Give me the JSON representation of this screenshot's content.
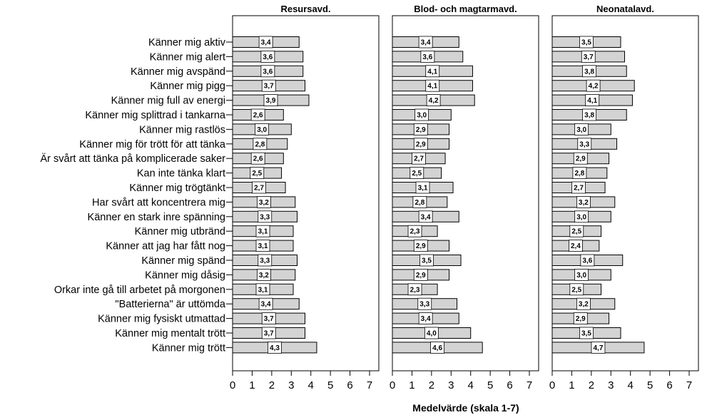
{
  "chart_data": {
    "type": "bar",
    "orientation": "horizontal",
    "xlabel": "Medelvärde (skala 1-7)",
    "xlim": [
      0,
      7
    ],
    "xticks": [
      "0",
      "1",
      "2",
      "3",
      "4",
      "5",
      "6",
      "7"
    ],
    "grid": false,
    "bar_color": "#d3d3d3",
    "categories": [
      "Känner mig aktiv",
      "Känner mig alert",
      "Känner mig avspänd",
      "Känner mig pigg",
      "Känner mig full av energi",
      "Känner mig splittrad i tankarna",
      "Känner mig rastlös",
      "Känner mig för trött för att tänka",
      "Är svårt att tänka på komplicerade saker",
      "Kan inte tänka klart",
      "Känner mig trögtänkt",
      "Har svårt att koncentrera mig",
      "Känner en stark inre spänning",
      "Känner mig utbränd",
      "Känner att jag har fått nog",
      "Känner mig spänd",
      "Känner mig dåsig",
      "Orkar inte gå till arbetet på morgonen",
      "\"Batterierna\" är uttömda",
      "Känner mig fysiskt utmattad",
      "Känner mig mentalt trött",
      "Känner mig trött"
    ],
    "panels": [
      {
        "title": "Resursavd.",
        "values": [
          3.4,
          3.6,
          3.6,
          3.7,
          3.9,
          2.6,
          3.0,
          2.8,
          2.6,
          2.5,
          2.7,
          3.2,
          3.3,
          3.1,
          3.1,
          3.3,
          3.2,
          3.1,
          3.4,
          3.7,
          3.7,
          4.3
        ],
        "labels": [
          "3,4",
          "3,6",
          "3,6",
          "3,7",
          "3,9",
          "2,6",
          "3,0",
          "2,8",
          "2,6",
          "2,5",
          "2,7",
          "3,2",
          "3,3",
          "3,1",
          "3,1",
          "3,3",
          "3,2",
          "3,1",
          "3,4",
          "3,7",
          "3,7",
          "4,3"
        ]
      },
      {
        "title": "Blod- och magtarmavd.",
        "values": [
          3.4,
          3.6,
          4.1,
          4.1,
          4.2,
          3.0,
          2.9,
          2.9,
          2.7,
          2.5,
          3.1,
          2.8,
          3.4,
          2.3,
          2.9,
          3.5,
          2.9,
          2.3,
          3.3,
          3.4,
          4.0,
          4.6
        ],
        "labels": [
          "3,4",
          "3,6",
          "4,1",
          "4,1",
          "4,2",
          "3,0",
          "2,9",
          "2,9",
          "2,7",
          "2,5",
          "3,1",
          "2,8",
          "3,4",
          "2,3",
          "2,9",
          "3,5",
          "2,9",
          "2,3",
          "3,3",
          "3,4",
          "4,0",
          "4,6"
        ]
      },
      {
        "title": "Neonatalavd.",
        "values": [
          3.5,
          3.7,
          3.8,
          4.2,
          4.1,
          3.8,
          3.0,
          3.3,
          2.9,
          2.8,
          2.7,
          3.2,
          3.0,
          2.5,
          2.4,
          3.6,
          3.0,
          2.5,
          3.2,
          2.9,
          3.5,
          4.7
        ],
        "labels": [
          "3,5",
          "3,7",
          "3,8",
          "4,2",
          "4,1",
          "3,8",
          "3,0",
          "3,3",
          "2,9",
          "2,8",
          "2,7",
          "3,2",
          "3,0",
          "2,5",
          "2,4",
          "3,6",
          "3,0",
          "2,5",
          "3,2",
          "2,9",
          "3,5",
          "4,7"
        ]
      }
    ]
  }
}
